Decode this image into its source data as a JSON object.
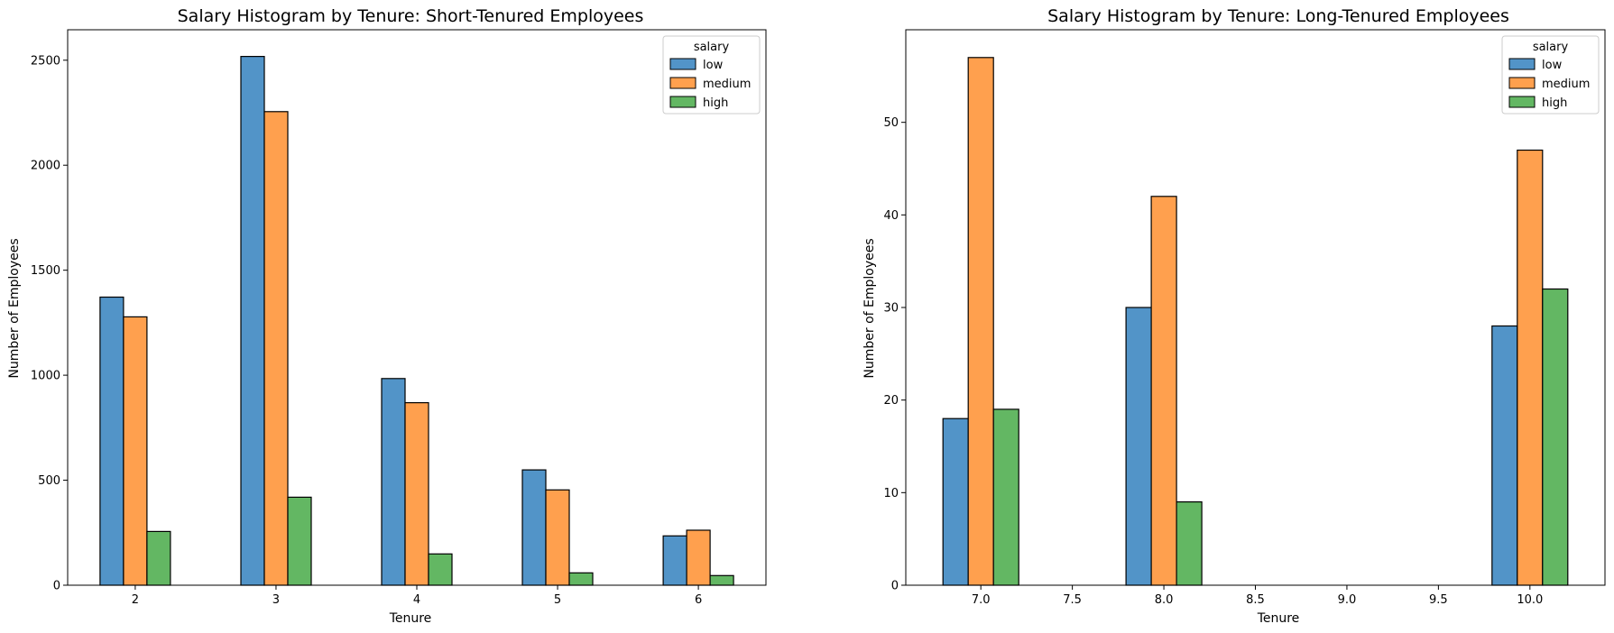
{
  "colors": {
    "low": "#5294c8",
    "medium": "#ffa04e",
    "high": "#63b763",
    "edge": "#000000",
    "legend_frame": "#cccccc"
  },
  "chart_data": [
    {
      "type": "bar",
      "title": "Salary Histogram by Tenure: Short-Tenured Employees",
      "xlabel": "Tenure",
      "ylabel": "Number of Employees",
      "categories": [
        2,
        3,
        4,
        5,
        6
      ],
      "xlim": [
        1.52,
        6.48
      ],
      "ylim": [
        0,
        2645
      ],
      "xticks": [
        2,
        3,
        4,
        5,
        6
      ],
      "xtick_labels": [
        "2",
        "3",
        "4",
        "5",
        "6"
      ],
      "yticks": [
        0,
        500,
        1000,
        1500,
        2000,
        2500
      ],
      "ytick_labels": [
        "0",
        "500",
        "1000",
        "1500",
        "2000",
        "2500"
      ],
      "legend": {
        "title": "salary",
        "placement": "upper right"
      },
      "series": [
        {
          "name": "low",
          "values": [
            1372,
            2518,
            984,
            549,
            235
          ]
        },
        {
          "name": "medium",
          "values": [
            1278,
            2255,
            869,
            454,
            262
          ]
        },
        {
          "name": "high",
          "values": [
            256,
            419,
            149,
            59,
            46
          ]
        }
      ]
    },
    {
      "type": "bar",
      "title": "Salary Histogram by Tenure: Long-Tenured Employees",
      "xlabel": "Tenure",
      "ylabel": "Number of Employees",
      "categories": [
        7,
        8,
        10
      ],
      "xlim": [
        6.59,
        10.41
      ],
      "ylim": [
        0,
        60
      ],
      "xticks": [
        7.0,
        7.5,
        8.0,
        8.5,
        9.0,
        9.5,
        10.0
      ],
      "xtick_labels": [
        "7.0",
        "7.5",
        "8.0",
        "8.5",
        "9.0",
        "9.5",
        "10.0"
      ],
      "yticks": [
        0,
        10,
        20,
        30,
        40,
        50
      ],
      "ytick_labels": [
        "0",
        "10",
        "20",
        "30",
        "40",
        "50"
      ],
      "legend": {
        "title": "salary",
        "placement": "upper right"
      },
      "series": [
        {
          "name": "low",
          "values": [
            18,
            30,
            28
          ]
        },
        {
          "name": "medium",
          "values": [
            57,
            42,
            47
          ]
        },
        {
          "name": "high",
          "values": [
            19,
            9,
            32
          ]
        }
      ]
    }
  ]
}
